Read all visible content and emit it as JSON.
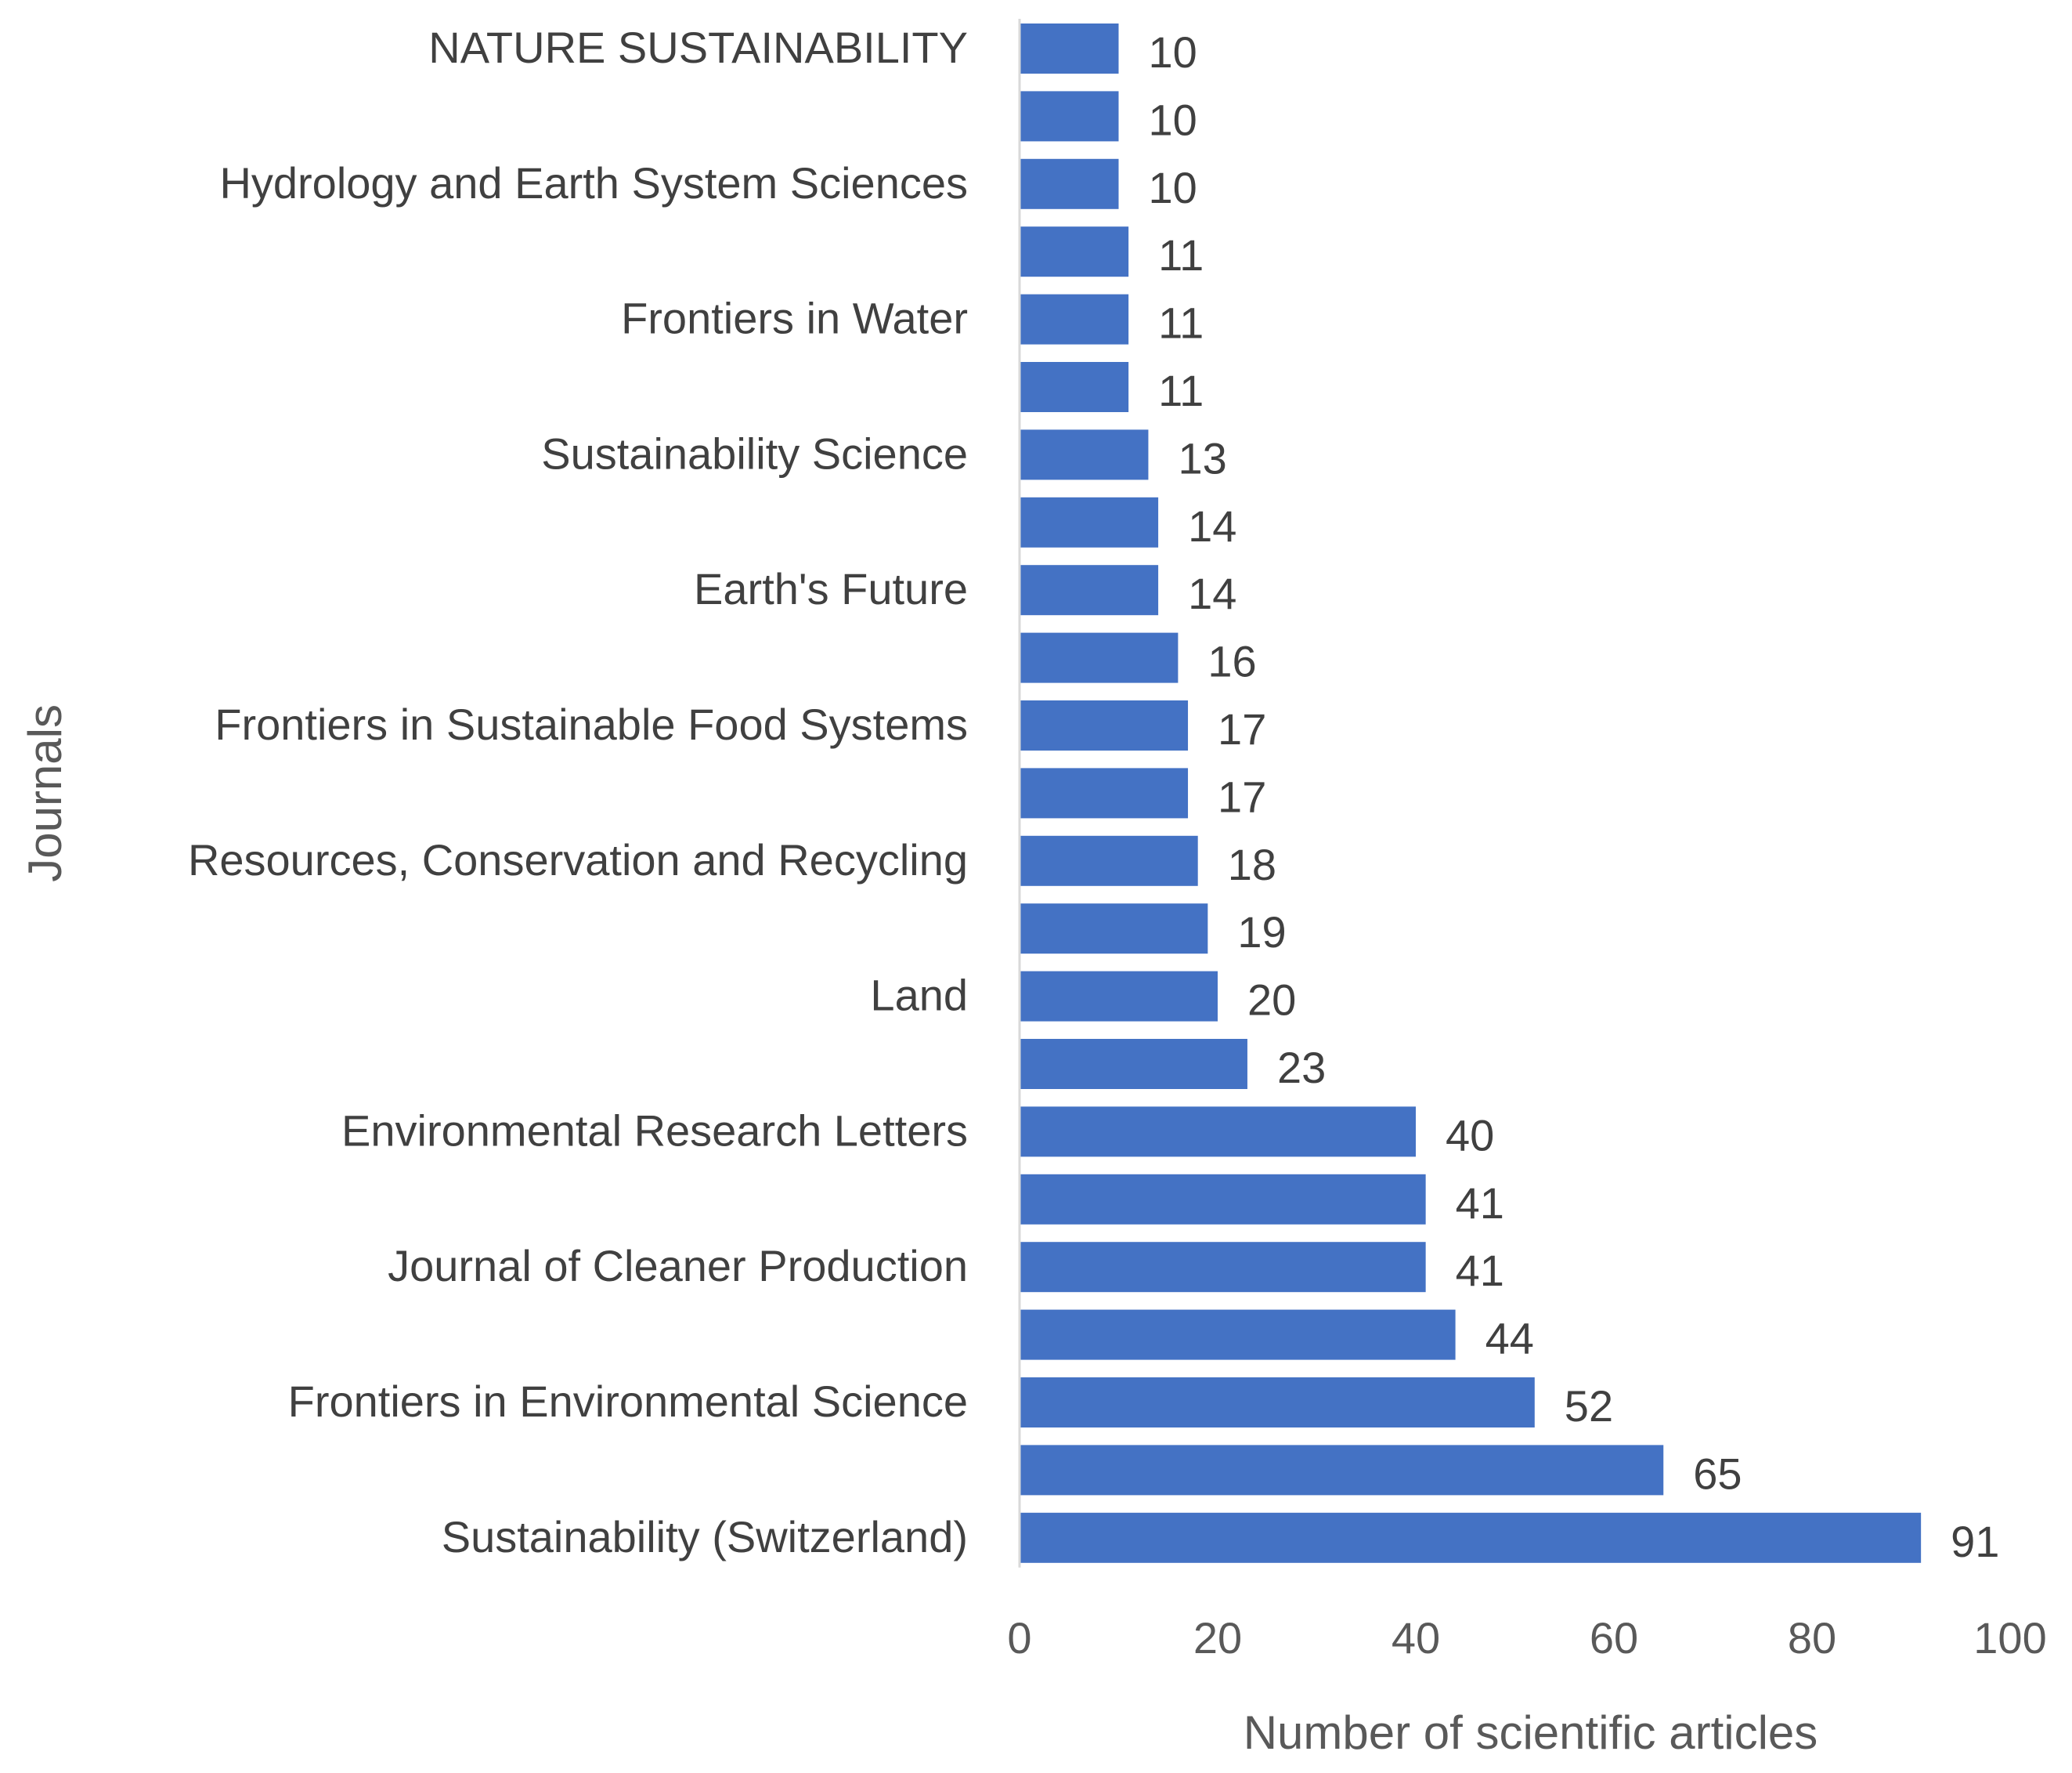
{
  "chart_data": {
    "type": "bar",
    "orientation": "horizontal",
    "title": "",
    "xlabel": "Number of scientific articles",
    "ylabel": "Journals",
    "xlim": [
      0,
      100
    ],
    "x_ticks": [
      0,
      20,
      40,
      60,
      80,
      100
    ],
    "grid": false,
    "bar_color": "#4472C4",
    "categories": [
      "NATURE SUSTAINABILITY",
      "",
      "Hydrology and Earth System Sciences",
      "",
      "Frontiers in Water",
      "",
      "Sustainability Science",
      "",
      "Earth's Future",
      "",
      "Frontiers in Sustainable Food Systems",
      "",
      "Resources, Conservation and Recycling",
      "",
      "Land",
      "",
      "Environmental Research Letters",
      "",
      "Journal of Cleaner Production",
      "",
      "Frontiers in Environmental Science",
      "",
      "Sustainability (Switzerland)"
    ],
    "values": [
      10,
      10,
      10,
      11,
      11,
      11,
      13,
      14,
      14,
      16,
      17,
      17,
      18,
      19,
      20,
      23,
      40,
      41,
      41,
      44,
      52,
      65,
      91
    ],
    "data_labels": [
      "10",
      "10",
      "10",
      "11",
      "11",
      "11",
      "13",
      "14",
      "14",
      "16",
      "17",
      "17",
      "18",
      "19",
      "20",
      "23",
      "40",
      "41",
      "41",
      "44",
      "52",
      "65",
      "91"
    ]
  }
}
